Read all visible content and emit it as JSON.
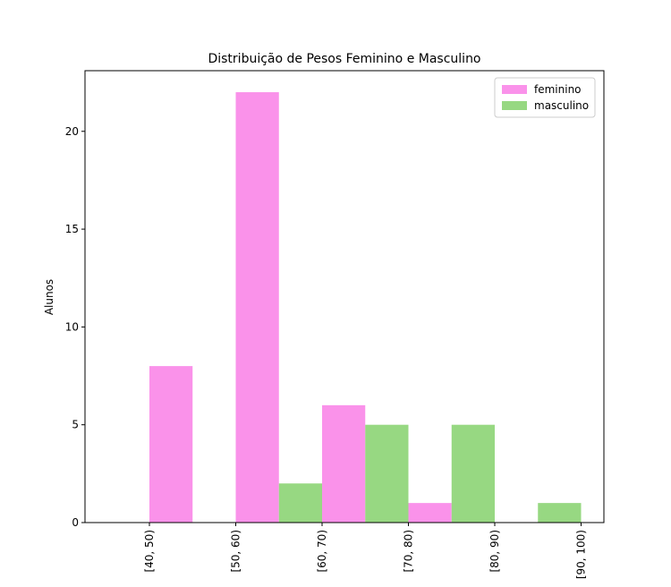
{
  "chart_data": {
    "type": "bar",
    "title": "Distribuição de Pesos Feminino e Masculino",
    "y_label": "Alunos",
    "categories": [
      "[40, 50)",
      "[50, 60)",
      "[60, 70)",
      "[70, 80)",
      "[80, 90)",
      "[90, 100)"
    ],
    "series": [
      {
        "name": "feminino",
        "color": "#fa92ea",
        "values": [
          8,
          22,
          6,
          1,
          0,
          0
        ]
      },
      {
        "name": "masculino",
        "color": "#97d882",
        "values": [
          0,
          2,
          5,
          5,
          1,
          0
        ]
      }
    ],
    "ylim": [
      0,
      23.1
    ],
    "yticks": [
      0,
      5,
      10,
      15,
      20
    ],
    "legend": "upper right",
    "grid": false
  }
}
